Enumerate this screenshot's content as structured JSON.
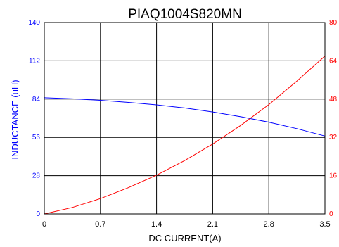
{
  "chart_data": {
    "type": "line",
    "title": "PIAQ1004S820MN",
    "xlabel": "DC CURRENT(A)",
    "ylabel": "INDUCTANCE (uH)",
    "y2label": "",
    "xlim": [
      0,
      3.5
    ],
    "ylim": [
      0,
      140
    ],
    "y2lim": [
      0,
      80
    ],
    "x_ticks": [
      "0",
      "0.7",
      "1.4",
      "2.1",
      "2.8",
      "3.5"
    ],
    "y_ticks": [
      "0",
      "28",
      "56",
      "84",
      "112",
      "140"
    ],
    "y2_ticks": [
      "0",
      "16",
      "32",
      "48",
      "64",
      "80"
    ],
    "grid": true,
    "series": [
      {
        "axis": "left",
        "color": "#0000ff",
        "x": [
          0,
          0.35,
          0.7,
          1.05,
          1.4,
          1.75,
          2.1,
          2.45,
          2.8,
          3.15,
          3.5
        ],
        "values": [
          85,
          84.2,
          83.1,
          81.6,
          79.8,
          77.5,
          74.6,
          71.1,
          67.1,
          62.4,
          57
        ]
      },
      {
        "axis": "right",
        "color": "#ff0000",
        "x": [
          0,
          0.35,
          0.7,
          1.05,
          1.4,
          1.75,
          2.1,
          2.45,
          2.8,
          3.15,
          3.5
        ],
        "values": [
          0,
          2.7,
          6.4,
          11,
          16.2,
          22.3,
          29.2,
          37,
          45.7,
          55.5,
          66
        ]
      }
    ]
  }
}
